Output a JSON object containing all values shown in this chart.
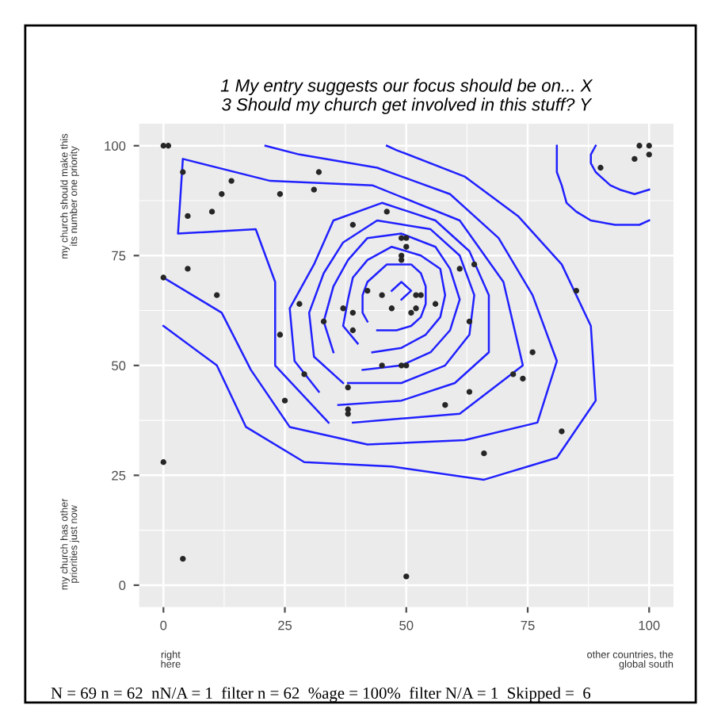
{
  "chart_data": {
    "type": "scatter",
    "title": "1 My entry suggests our focus should be on... X\n3 Should my church get involved in this stuff? Y",
    "x": [
      0,
      1,
      4,
      14,
      12,
      10,
      5,
      24,
      32,
      31,
      39,
      46,
      49,
      50,
      50,
      49,
      49,
      0,
      5,
      11,
      42,
      45,
      47,
      52,
      53,
      52,
      51,
      28,
      37,
      39,
      33,
      39,
      24,
      98,
      100,
      100,
      97,
      90,
      56,
      64,
      61,
      85,
      63,
      76,
      45,
      49,
      50,
      29,
      38,
      25,
      38,
      38,
      0,
      4,
      50,
      72,
      74,
      63,
      58,
      82,
      66
    ],
    "series": [
      {
        "color": "#262626",
        "marker": "circle",
        "values": [
          100,
          100,
          94,
          92,
          89,
          85,
          84,
          89,
          94,
          90,
          82,
          85,
          79,
          79,
          77,
          75,
          74,
          70,
          72,
          66,
          67,
          66,
          63,
          66,
          66,
          63,
          62,
          64,
          63,
          62,
          60,
          58,
          57,
          100,
          100,
          98,
          97,
          95,
          64,
          73,
          72,
          67,
          60,
          53,
          50,
          50,
          50,
          48,
          45,
          42,
          40,
          39,
          28,
          6,
          2,
          48,
          47,
          44,
          41,
          35,
          30
        ]
      },
      {
        "type": "line",
        "color": "#2020ff",
        "x": [
          0,
          11,
          17,
          29,
          47,
          66,
          81,
          89,
          88,
          82,
          73,
          62,
          48,
          46
        ],
        "values": [
          59,
          50,
          36,
          28,
          27,
          24,
          29,
          42,
          59,
          73,
          84,
          93,
          99,
          100
        ]
      },
      {
        "type": "line",
        "color": "#2020ff",
        "x": [
          81,
          81,
          81,
          82,
          83,
          85,
          88,
          93,
          98,
          100
        ],
        "values": [
          100,
          97,
          94,
          91,
          87,
          85,
          83,
          82,
          82,
          83
        ]
      },
      {
        "type": "line",
        "color": "#2020ff",
        "x": [
          0,
          12,
          18,
          26,
          42,
          62,
          77,
          81,
          76,
          69,
          59,
          44,
          28,
          21
        ],
        "values": [
          70,
          62,
          49,
          36,
          32,
          33,
          37,
          51,
          66,
          79,
          89,
          95,
          98,
          100
        ]
      },
      {
        "type": "line",
        "color": "#2020ff",
        "x": [
          89,
          88,
          88,
          89,
          90,
          92,
          94,
          97,
          100
        ],
        "values": [
          100,
          98,
          96,
          94,
          93,
          91,
          90,
          89,
          90
        ]
      },
      {
        "type": "line",
        "color": "#2020ff",
        "x": [
          39,
          61,
          74,
          70,
          61,
          43,
          22,
          4,
          3,
          19,
          23,
          23,
          34
        ],
        "values": [
          37,
          39,
          50,
          69,
          83,
          91,
          92,
          97,
          80,
          81,
          69,
          50,
          37
        ]
      },
      {
        "type": "line",
        "color": "#2020ff",
        "x": [
          36,
          49,
          60,
          67,
          67,
          63,
          56,
          45,
          35,
          31,
          26,
          27,
          32
        ],
        "values": [
          41,
          42,
          46,
          53,
          66,
          76,
          83,
          87,
          83,
          73,
          63,
          51,
          44
        ]
      },
      {
        "type": "line",
        "color": "#2020ff",
        "x": [
          38,
          49,
          58,
          63,
          64,
          61,
          55,
          44,
          37,
          33,
          30,
          31,
          37
        ],
        "values": [
          46,
          46,
          50,
          57,
          66,
          75,
          81,
          83,
          78,
          71,
          62,
          52,
          46
        ]
      },
      {
        "type": "line",
        "color": "#2020ff",
        "x": [
          41,
          49,
          55,
          59,
          61,
          59,
          56,
          49,
          42,
          38,
          35,
          33,
          35
        ],
        "values": [
          49,
          50,
          53,
          58,
          65,
          72,
          77,
          80,
          79,
          74,
          68,
          60,
          53
        ]
      },
      {
        "type": "line",
        "color": "#2020ff",
        "x": [
          43,
          49,
          54,
          57,
          58,
          57,
          53,
          47,
          42,
          39,
          38,
          37,
          40
        ],
        "values": [
          53,
          54,
          57,
          61,
          66,
          72,
          75,
          77,
          74,
          70,
          65,
          59,
          55
        ]
      },
      {
        "type": "line",
        "color": "#2020ff",
        "x": [
          44,
          48,
          51,
          53,
          54,
          54,
          53,
          51,
          46,
          44,
          42,
          41,
          41,
          42
        ],
        "values": [
          58,
          58,
          59,
          61,
          64,
          68,
          71,
          73,
          73,
          71,
          69,
          66,
          62,
          60
        ]
      },
      {
        "type": "line",
        "color": "#2020ff",
        "x": [
          47,
          49,
          51,
          49
        ],
        "values": [
          67,
          69,
          67,
          65
        ]
      }
    ],
    "xlim": [
      -5,
      105
    ],
    "ylim": [
      -5,
      105
    ],
    "xticks": [
      0,
      25,
      50,
      75,
      100
    ],
    "yticks": [
      0,
      25,
      50,
      75,
      100
    ],
    "grid": true,
    "annotations": [
      "my church should make this its number one priority",
      "my church has other priorities just now",
      "right here",
      "other countries, the global south",
      "N = 69 n = 62  nN/A = 1  filter n = 62  %age = 100%  filter N/A = 1  Skipped =  6"
    ]
  }
}
